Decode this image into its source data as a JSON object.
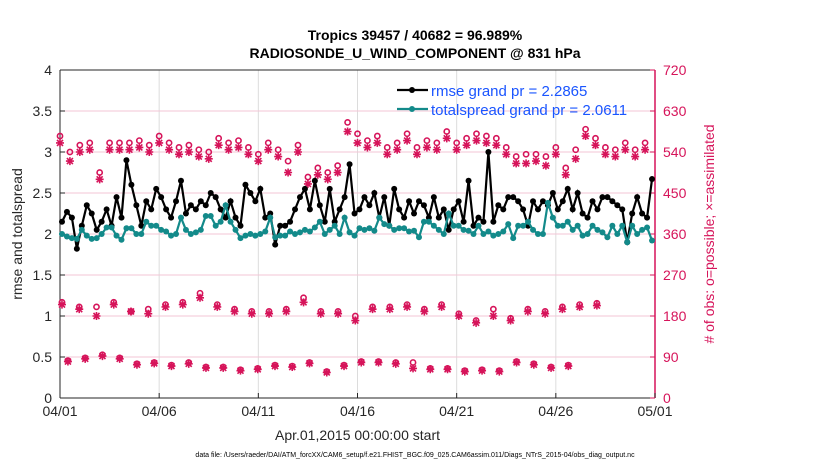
{
  "chart_data": {
    "type": "line",
    "title": "Tropics 39457 / 40682 = 96.989%",
    "subtitle": "RADIOSONDE_U_WIND_COMPONENT @ 831 hPa",
    "xlabel": "Apr.01,2015 00:00:00 start",
    "ylabel": "rmse and totalspread",
    "ylabel_right": "# of obs: o=possible; ×=assimilated",
    "footer": "data file: /Users/raeder/DAI/ATM_forcXX/CAM6_setup/f.e21.FHIST_BGC.f09_025.CAM6assim.011/Diags_NTrS_2015-04/obs_diag_output.nc",
    "xlim": [
      0,
      30
    ],
    "ylim": [
      0,
      4
    ],
    "ylim_right": [
      0,
      720
    ],
    "x_ticks": [
      0,
      5,
      10,
      15,
      20,
      25,
      30
    ],
    "x_tick_labels": [
      "04/01",
      "04/06",
      "04/11",
      "04/16",
      "04/21",
      "04/26",
      "05/01"
    ],
    "y_ticks": [
      "0",
      "0.5",
      "1",
      "1.5",
      "2",
      "2.5",
      "3",
      "3.5",
      "4"
    ],
    "y_right_ticks": [
      "0",
      "90",
      "180",
      "270",
      "360",
      "450",
      "540",
      "630",
      "720"
    ],
    "grid": true,
    "legend_position": "top-right",
    "colors": {
      "rmse": "#000000",
      "totalspread": "#138a8a",
      "obs": "#d6145a",
      "legend_text": "#1a55ff"
    },
    "step_days": 0.25,
    "series": [
      {
        "name": "rmse grand pr = 2.2865",
        "values": [
          2.15,
          2.27,
          2.2,
          1.82,
          2.1,
          2.35,
          2.25,
          2.05,
          2.15,
          2.3,
          2.1,
          2.45,
          2.2,
          2.9,
          2.6,
          2.35,
          2.1,
          2.4,
          2.3,
          2.55,
          2.45,
          2.3,
          2.2,
          2.4,
          2.65,
          2.25,
          2.35,
          2.3,
          2.4,
          2.35,
          2.5,
          2.45,
          2.3,
          2.2,
          2.4,
          2.2,
          2.1,
          2.6,
          2.5,
          2.4,
          2.55,
          2.2,
          2.25,
          1.87,
          2.1,
          2.1,
          2.15,
          2.3,
          2.45,
          2.55,
          2.3,
          2.65,
          2.35,
          2.15,
          2.55,
          2.15,
          2.3,
          2.45,
          2.85,
          2.25,
          2.3,
          2.45,
          2.35,
          2.5,
          2.2,
          2.45,
          2.1,
          2.55,
          2.3,
          2.2,
          2.4,
          2.25,
          2.4,
          2.35,
          2.2,
          2.45,
          2.2,
          2.3,
          2.05,
          2.3,
          2.4,
          2.15,
          2.65,
          2.1,
          2.2,
          2.15,
          3.0,
          2.15,
          2.35,
          2.3,
          2.45,
          2.45,
          2.4,
          2.3,
          2.1,
          2.4,
          2.3,
          2.4,
          2.35,
          2.5,
          2.3,
          2.4,
          2.55,
          2.3,
          2.5,
          2.25,
          2.2,
          2.4,
          2.3,
          2.45,
          2.45,
          2.4,
          2.35,
          2.3,
          1.9,
          2.25,
          2.45,
          2.25,
          2.2,
          2.67
        ]
      },
      {
        "name": "totalspread grand pr = 2.0611",
        "values": [
          2.0,
          1.97,
          1.95,
          1.94,
          2.05,
          1.98,
          1.94,
          1.95,
          2.0,
          2.08,
          2.08,
          1.98,
          1.93,
          2.07,
          2.07,
          2.0,
          2.0,
          2.15,
          2.1,
          2.1,
          2.05,
          2.03,
          1.98,
          2.0,
          2.2,
          2.05,
          2.0,
          2.02,
          2.05,
          2.22,
          2.22,
          2.1,
          2.15,
          2.35,
          2.15,
          2.05,
          1.95,
          1.98,
          2.0,
          1.98,
          2.0,
          2.03,
          2.2,
          1.96,
          1.98,
          1.98,
          2.03,
          2.0,
          2.02,
          2.05,
          2.03,
          2.08,
          2.15,
          2.0,
          2.05,
          2.1,
          2.0,
          2.2,
          2.02,
          1.98,
          2.07,
          2.05,
          2.07,
          2.04,
          2.2,
          2.12,
          2.1,
          2.05,
          2.07,
          2.07,
          2.03,
          2.04,
          1.96,
          2.15,
          2.15,
          2.1,
          2.05,
          2.0,
          2.25,
          2.1,
          2.1,
          2.05,
          2.04,
          2.0,
          2.1,
          2.0,
          2.03,
          1.98,
          2.0,
          2.03,
          2.12,
          1.95,
          2.1,
          2.1,
          2.15,
          2.05,
          2.0,
          2.0,
          2.38,
          2.2,
          2.1,
          2.1,
          2.15,
          2.05,
          2.1,
          1.98,
          2.0,
          2.1,
          2.05,
          2.02,
          1.96,
          2.1,
          2.0,
          2.1,
          1.9,
          2.1,
          2.0,
          2.05,
          2.08,
          1.92
        ]
      }
    ],
    "obs_bands": [
      {
        "name": "upper",
        "x0": 0,
        "step_days": 0.5,
        "possible": [
          575,
          540,
          555,
          560,
          495,
          560,
          560,
          560,
          565,
          555,
          575,
          560,
          550,
          555,
          545,
          540,
          570,
          560,
          565,
          550,
          535,
          560,
          545,
          520,
          555,
          485,
          505,
          495,
          510,
          605,
          580,
          565,
          575,
          550,
          560,
          580,
          550,
          565,
          560,
          585,
          560,
          570,
          580,
          575,
          570,
          550,
          530,
          535,
          535,
          530,
          550,
          505,
          545,
          590,
          570,
          550,
          545,
          560,
          545,
          560
        ],
        "assimilated": [
          560,
          520,
          540,
          545,
          480,
          545,
          545,
          545,
          550,
          540,
          560,
          545,
          535,
          540,
          530,
          525,
          555,
          545,
          550,
          535,
          520,
          545,
          530,
          495,
          540,
          470,
          490,
          480,
          495,
          585,
          560,
          550,
          560,
          535,
          545,
          565,
          535,
          550,
          545,
          570,
          545,
          555,
          565,
          560,
          555,
          535,
          515,
          515,
          520,
          510,
          535,
          490,
          525,
          575,
          555,
          535,
          530,
          545,
          530,
          545
        ]
      },
      {
        "name": "middle",
        "x0": 0.1,
        "step_days": 0.87,
        "possible": [
          210,
          200,
          200,
          210,
          190,
          195,
          205,
          210,
          230,
          205,
          195,
          190,
          190,
          195,
          220,
          190,
          190,
          180,
          200,
          200,
          205,
          195,
          205,
          185,
          170,
          195,
          175,
          195,
          190,
          200,
          205,
          208
        ],
        "assimilated": [
          205,
          195,
          180,
          205,
          190,
          185,
          200,
          205,
          220,
          200,
          190,
          185,
          185,
          190,
          210,
          185,
          185,
          170,
          195,
          195,
          200,
          190,
          200,
          180,
          165,
          180,
          170,
          190,
          185,
          195,
          200,
          203
        ]
      },
      {
        "name": "lower",
        "x0": 0.4,
        "step_days": 0.87,
        "possible": [
          82,
          88,
          95,
          88,
          75,
          78,
          72,
          78,
          68,
          68,
          62,
          65,
          72,
          70,
          78,
          58,
          72,
          80,
          80,
          78,
          78,
          65,
          65,
          60,
          62,
          60,
          80,
          75,
          68,
          72
        ],
        "assimilated": [
          80,
          86,
          92,
          86,
          73,
          76,
          70,
          75,
          66,
          66,
          60,
          63,
          70,
          68,
          76,
          56,
          70,
          78,
          78,
          75,
          65,
          63,
          63,
          58,
          60,
          58,
          78,
          73,
          66,
          70
        ]
      }
    ]
  }
}
